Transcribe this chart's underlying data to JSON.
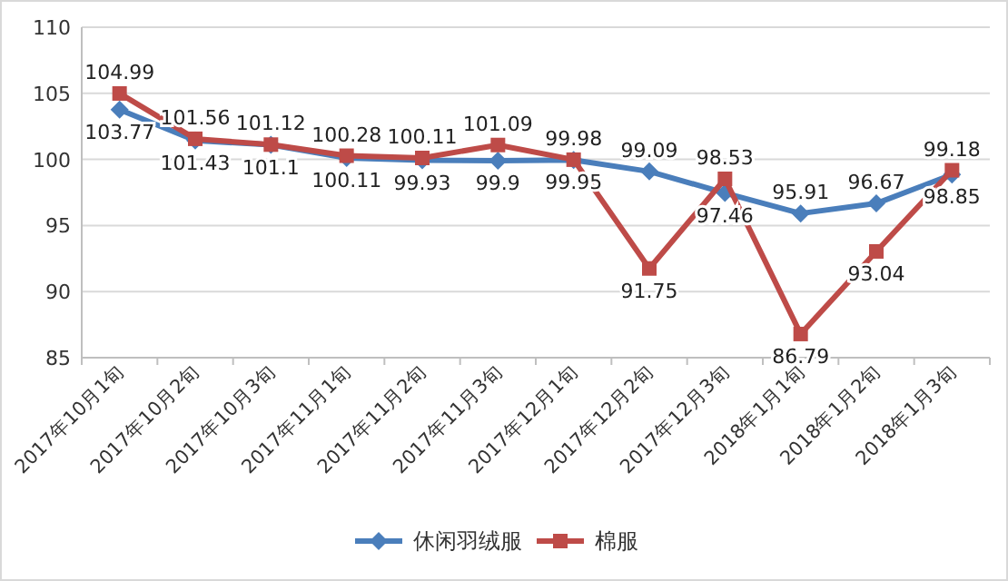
{
  "chart_data": {
    "type": "line",
    "categories": [
      "2017年10月1旬",
      "2017年10月2旬",
      "2017年10月3旬",
      "2017年11月1旬",
      "2017年11月2旬",
      "2017年11月3旬",
      "2017年12月1旬",
      "2017年12月2旬",
      "2017年12月3旬",
      "2018年1月1旬",
      "2018年1月2旬",
      "2018年1月3旬"
    ],
    "series": [
      {
        "name": "休闲羽绒服",
        "color": "#4a7ebb",
        "marker": "diamond",
        "values": [
          103.77,
          101.43,
          101.1,
          100.11,
          99.93,
          99.9,
          99.95,
          99.09,
          97.46,
          95.91,
          96.67,
          98.85
        ]
      },
      {
        "name": "棉服",
        "color": "#be4b48",
        "marker": "square",
        "values": [
          104.99,
          101.56,
          101.12,
          100.28,
          100.11,
          101.09,
          99.98,
          91.75,
          98.53,
          86.79,
          93.04,
          99.18
        ]
      }
    ],
    "ylim": [
      85,
      110
    ],
    "yticks": [
      85,
      90,
      95,
      100,
      105,
      110
    ],
    "grid": "y",
    "legend": "bottom",
    "data_labels": true,
    "line_style": "solid"
  }
}
